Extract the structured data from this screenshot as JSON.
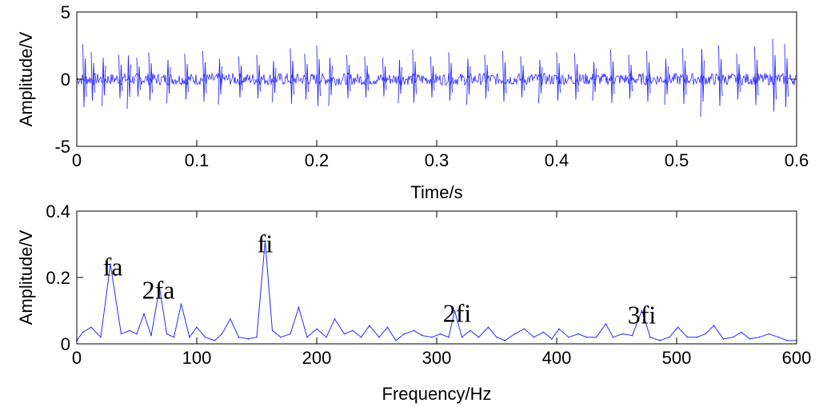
{
  "chart_data": [
    {
      "type": "line",
      "title": "",
      "xlabel": "Time/s",
      "ylabel": "Amplitude/V",
      "xlim": [
        0,
        0.6
      ],
      "ylim": [
        -5,
        5
      ],
      "xticks": [
        "0",
        "0.1",
        "0.2",
        "0.3",
        "0.4",
        "0.5",
        "0.6"
      ],
      "yticks": [
        "5",
        "0",
        "-5"
      ],
      "grid": false,
      "line_color": "#2a2aff",
      "series": [
        {
          "x": [
            0.005,
            0.012,
            0.021,
            0.035,
            0.042,
            0.05,
            0.06,
            0.075,
            0.09,
            0.105,
            0.118,
            0.135,
            0.15,
            0.163,
            0.178,
            0.19,
            0.2,
            0.21,
            0.225,
            0.24,
            0.255,
            0.268,
            0.28,
            0.295,
            0.31,
            0.325,
            0.34,
            0.355,
            0.37,
            0.385,
            0.4,
            0.415,
            0.43,
            0.445,
            0.46,
            0.475,
            0.49,
            0.505,
            0.52,
            0.535,
            0.55,
            0.565,
            0.58,
            0.59
          ],
          "values": [
            2.6,
            2.0,
            -2.0,
            1.8,
            -2.2,
            1.6,
            2.0,
            -1.8,
            1.9,
            2.1,
            -1.9,
            1.7,
            1.8,
            -1.7,
            2.3,
            1.9,
            2.5,
            -2.0,
            1.8,
            1.7,
            1.6,
            -1.8,
            2.2,
            1.7,
            2.0,
            -1.9,
            1.8,
            2.1,
            1.7,
            -1.8,
            2.0,
            1.9,
            -1.6,
            2.2,
            1.8,
            2.1,
            -1.9,
            2.3,
            -2.8,
            2.5,
            1.9,
            2.4,
            3.0,
            2.6
          ]
        }
      ]
    },
    {
      "type": "line",
      "title": "",
      "xlabel": "Frequency/Hz",
      "ylabel": "Amplitude/V",
      "xlim": [
        0,
        600
      ],
      "ylim": [
        0,
        0.4
      ],
      "xticks": [
        "0",
        "100",
        "200",
        "300",
        "400",
        "500",
        "600"
      ],
      "yticks": [
        "0.4",
        "0.2",
        "0"
      ],
      "grid": false,
      "line_color": "#2a2aff",
      "series": [
        {
          "x": [
            0,
            5,
            12,
            20,
            28,
            37,
            44,
            50,
            56,
            62,
            69,
            75,
            81,
            87,
            94,
            100,
            107,
            115,
            121,
            128,
            135,
            143,
            150,
            157,
            163,
            170,
            178,
            185,
            192,
            200,
            208,
            215,
            223,
            230,
            237,
            244,
            252,
            259,
            266,
            273,
            281,
            288,
            296,
            303,
            310,
            315,
            321,
            328,
            335,
            343,
            350,
            357,
            365,
            373,
            381,
            389,
            396,
            402,
            410,
            418,
            425,
            433,
            441,
            447,
            455,
            463,
            471,
            478,
            486,
            494,
            501,
            509,
            517,
            524,
            531,
            539,
            547,
            554,
            561,
            569,
            577,
            585,
            592,
            600
          ],
          "values": [
            0.01,
            0.035,
            0.05,
            0.02,
            0.24,
            0.03,
            0.04,
            0.03,
            0.09,
            0.025,
            0.17,
            0.03,
            0.02,
            0.12,
            0.02,
            0.05,
            0.02,
            0.01,
            0.03,
            0.075,
            0.02,
            0.015,
            0.02,
            0.31,
            0.04,
            0.02,
            0.03,
            0.11,
            0.02,
            0.045,
            0.02,
            0.075,
            0.03,
            0.04,
            0.02,
            0.055,
            0.02,
            0.05,
            0.01,
            0.03,
            0.04,
            0.025,
            0.02,
            0.03,
            0.02,
            0.1,
            0.02,
            0.04,
            0.02,
            0.05,
            0.02,
            0.01,
            0.03,
            0.045,
            0.02,
            0.035,
            0.015,
            0.045,
            0.02,
            0.03,
            0.02,
            0.02,
            0.06,
            0.02,
            0.03,
            0.025,
            0.1,
            0.02,
            0.01,
            0.02,
            0.05,
            0.02,
            0.02,
            0.03,
            0.055,
            0.015,
            0.02,
            0.035,
            0.015,
            0.02,
            0.03,
            0.02,
            0.01,
            0.01
          ]
        }
      ],
      "annotations": [
        {
          "text": "fa",
          "x": 30,
          "y": 0.23
        },
        {
          "text": "2fa",
          "x": 68,
          "y": 0.16
        },
        {
          "text": "fi",
          "x": 157,
          "y": 0.3
        },
        {
          "text": "2fi",
          "x": 317,
          "y": 0.09
        },
        {
          "text": "3fi",
          "x": 471,
          "y": 0.085
        }
      ]
    }
  ]
}
